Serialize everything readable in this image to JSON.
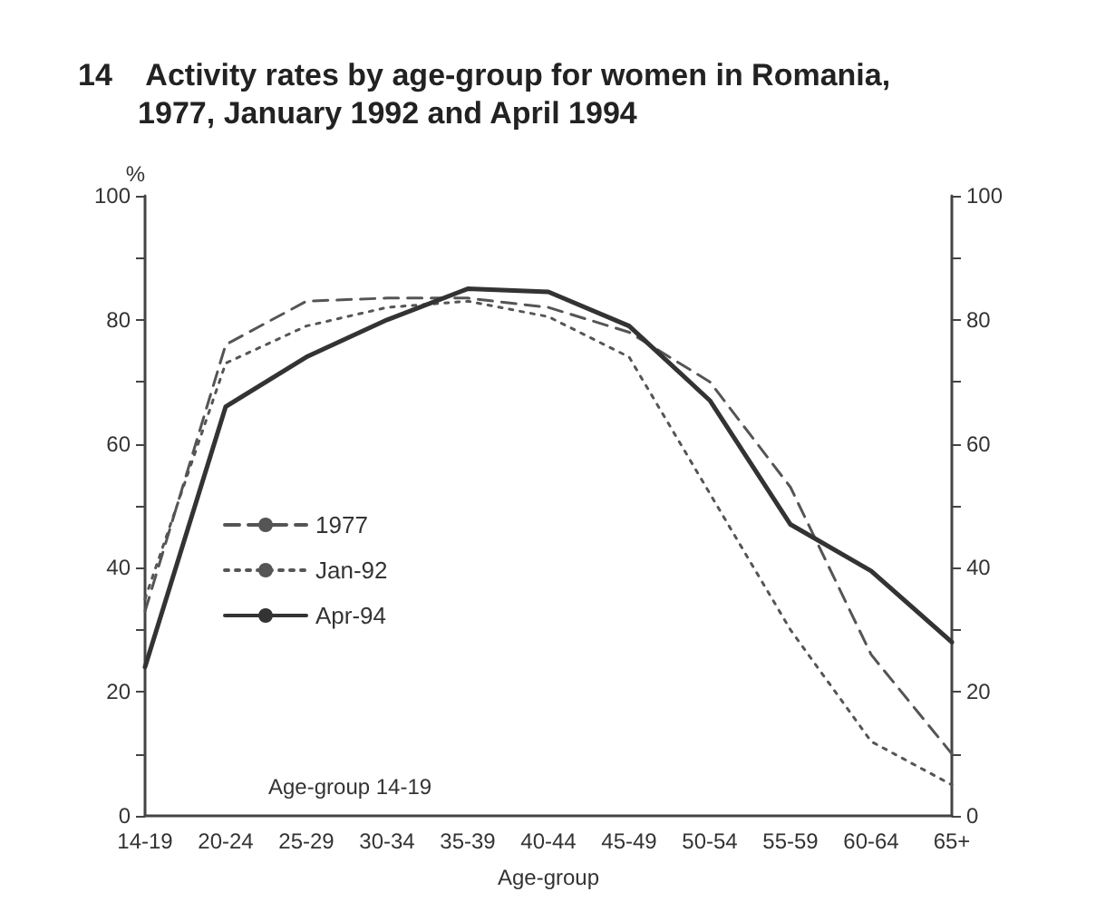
{
  "chart_data": {
    "type": "line",
    "title": "14    Activity rates by age-group for women in Romania,\n       1977, January 1992 and April 1994",
    "xlabel": "Age-group",
    "ylabel": "%",
    "categories": [
      "14-19",
      "20-24",
      "25-29",
      "30-34",
      "35-39",
      "40-44",
      "45-49",
      "50-54",
      "55-59",
      "60-64",
      "65+"
    ],
    "series": [
      {
        "name": "1977",
        "color": "#555555",
        "line_style": "dashed",
        "values": [
          33,
          76,
          83,
          83.5,
          83.5,
          82,
          78,
          70,
          53,
          26,
          10
        ]
      },
      {
        "name": "Jan-92",
        "color": "#555555",
        "line_style": "dotted",
        "values": [
          35,
          73,
          79,
          82,
          83,
          80.5,
          74,
          52,
          30,
          12,
          5
        ]
      },
      {
        "name": "Apr-94",
        "color": "#333333",
        "line_style": "solid",
        "values": [
          24,
          66,
          74,
          80,
          85,
          84.5,
          79,
          67,
          47,
          39.5,
          28
        ]
      }
    ],
    "ylim": [
      0,
      100
    ],
    "yticks": [
      0,
      {
        "value": 10,
        "label": null
      },
      20,
      {
        "value": 30,
        "label": null
      },
      40,
      {
        "value": 50,
        "label": null
      },
      60,
      {
        "value": 70,
        "label": null
      },
      80,
      {
        "value": 90,
        "label": null
      },
      100
    ],
    "y2lim": [
      0,
      100
    ],
    "y2ticks": [
      0,
      {
        "value": 10,
        "label": null
      },
      20,
      {
        "value": 30,
        "label": null
      },
      40,
      {
        "value": 50,
        "label": null
      },
      60,
      {
        "value": 70,
        "label": null
      },
      80,
      {
        "value": 90,
        "label": null
      },
      100
    ],
    "annotations": [
      "Age-group 14-19"
    ],
    "legend": "left",
    "grid": false,
    "marker": "none"
  }
}
